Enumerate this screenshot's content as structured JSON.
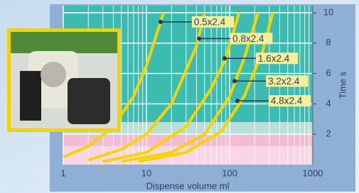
{
  "chart_data": {
    "type": "line",
    "x_label": "Dispense volume ml",
    "y_label": "Time s",
    "log_x": true,
    "xlim": [
      1,
      1000
    ],
    "xticks": [
      1,
      10,
      100,
      1000
    ],
    "xminorticks": [
      2,
      3,
      4,
      5,
      6,
      7,
      8,
      9,
      20,
      30,
      40,
      50,
      60,
      70,
      80,
      90,
      200,
      300,
      400,
      500,
      600,
      700,
      800,
      900
    ],
    "ylim": [
      0,
      10
    ],
    "yticks": [
      2,
      4,
      6,
      8,
      10
    ],
    "grid": true,
    "series": [
      {
        "name": "0.5x2.4",
        "color": "#f5d400",
        "x": [
          1,
          2,
          4,
          7,
          10,
          15,
          16
        ],
        "values": [
          0.5,
          1.2,
          2.5,
          4.5,
          6.5,
          9.5,
          10
        ],
        "marker": [
          14.8,
          9.4
        ]
      },
      {
        "name": "0.8x2.4",
        "color": "#f5d400",
        "x": [
          2,
          5,
          10,
          20,
          40,
          50
        ],
        "values": [
          0.3,
          1,
          2,
          4,
          7.8,
          10
        ],
        "marker": [
          43,
          8.3
        ]
      },
      {
        "name": "1.6x2.4",
        "color": "#f5d400",
        "x": [
          3,
          10,
          30,
          60,
          90,
          130
        ],
        "values": [
          0.2,
          0.8,
          2.5,
          5,
          7,
          10
        ],
        "marker": [
          87,
          7
        ]
      },
      {
        "name": "3.2x2.4",
        "color": "#f5d400",
        "x": [
          5,
          20,
          50,
          100,
          150,
          220
        ],
        "values": [
          0.2,
          0.8,
          2,
          4.5,
          7,
          10
        ],
        "marker": [
          115,
          5.5
        ]
      },
      {
        "name": "4.8x2.4",
        "color": "#f5d400",
        "x": [
          8,
          30,
          80,
          150,
          250,
          330
        ],
        "values": [
          0.2,
          0.8,
          2.2,
          4.5,
          7.5,
          10
        ],
        "marker": [
          124,
          4.2
        ]
      }
    ]
  }
}
